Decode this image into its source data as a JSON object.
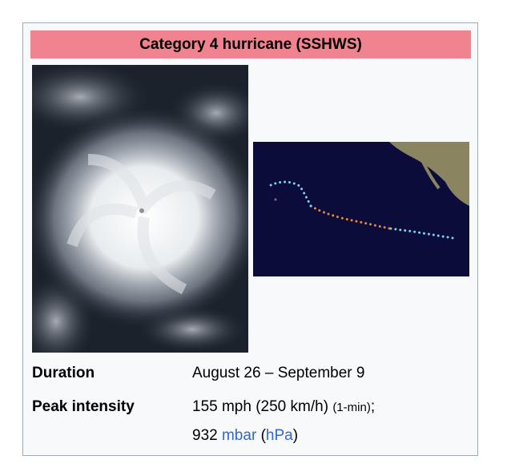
{
  "header": {
    "title": "Category 4 hurricane (SSHWS)"
  },
  "rows": [
    {
      "label": "Duration",
      "value": "August 26 – September 9"
    },
    {
      "label": "Peak intensity",
      "value": {
        "speed": "155 mph (250 km/h)",
        "note": "(1-min)",
        "sep": ";",
        "pressure": "932",
        "unit": "mbar",
        "open": "(",
        "alt_unit": "hPa",
        "close": ")"
      }
    }
  ]
}
